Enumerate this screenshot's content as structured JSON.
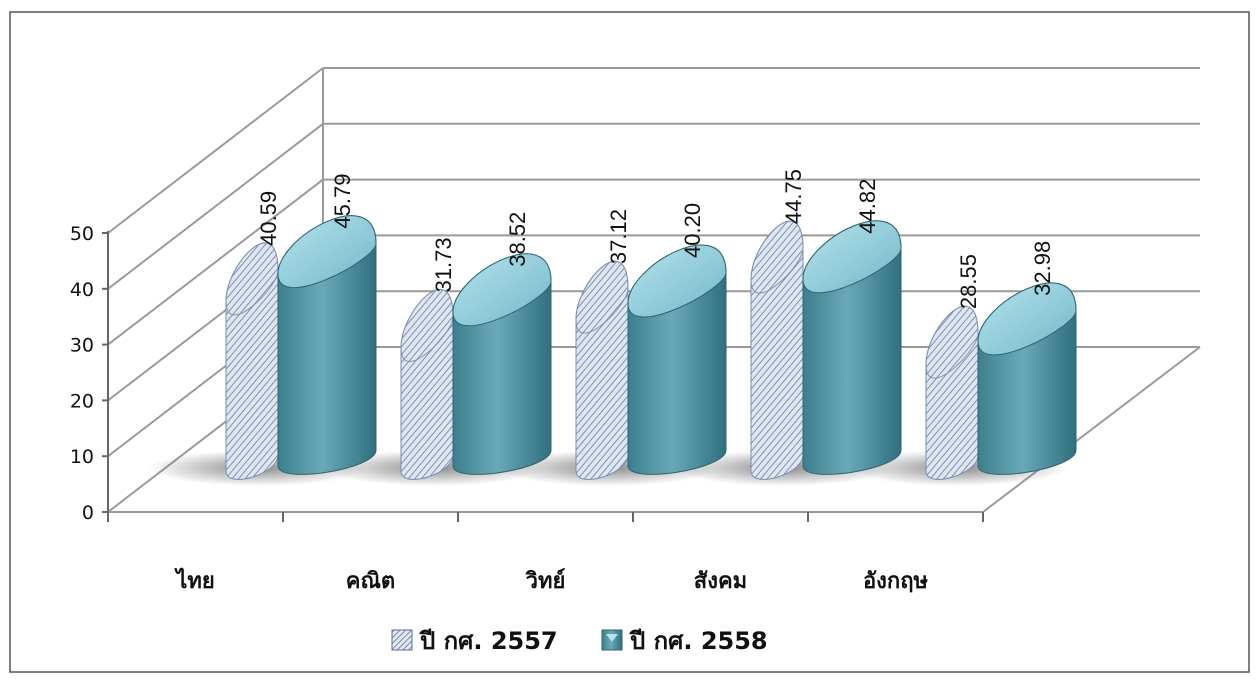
{
  "chart_data": {
    "type": "bar",
    "categories": [
      "ไทย",
      "คณิต",
      "วิทย์",
      "สังคม",
      "อังกฤษ"
    ],
    "series": [
      {
        "name": "ปี กศ. 2557",
        "values": [
          40.59,
          31.73,
          37.12,
          44.75,
          28.55
        ],
        "labels": [
          "40.59",
          "31.73",
          "37.12",
          "44.75",
          "28.55"
        ],
        "color": "#a9b9d6"
      },
      {
        "name": "ปี กศ. 2558",
        "values": [
          45.79,
          38.52,
          40.2,
          44.82,
          32.98
        ],
        "labels": [
          "45.79",
          "38.52",
          "40.20",
          "44.82",
          "32.98"
        ],
        "color": "#5e9fae"
      }
    ],
    "yticks": [
      0,
      10,
      20,
      30,
      40,
      50
    ],
    "ylim": [
      0,
      50
    ],
    "grid": true,
    "legend_position": "bottom"
  }
}
